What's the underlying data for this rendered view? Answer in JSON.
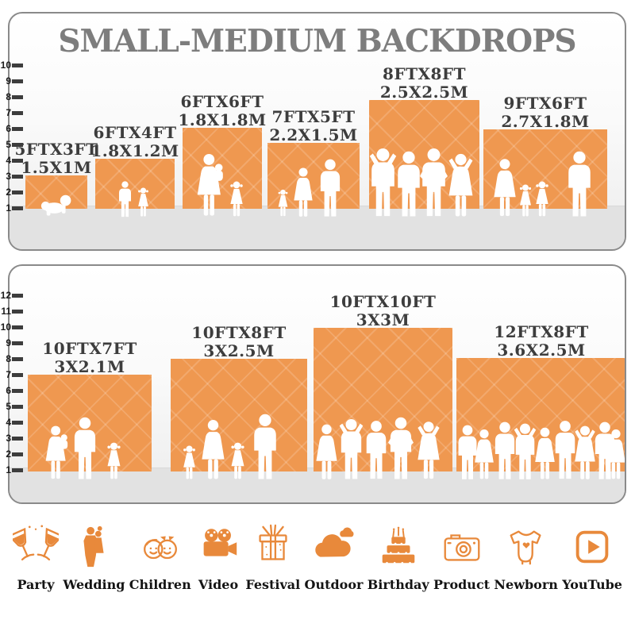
{
  "title": "SMALL-MEDIUM BACKDROPS",
  "panels": [
    {
      "name": "small-medium sizes (feet ruler 1-10)",
      "ruler": [
        "10",
        "9",
        "8",
        "7",
        "6",
        "5",
        "4",
        "3",
        "2",
        "1"
      ],
      "blocks": [
        {
          "size_ft": "5FTX3FT",
          "size_m": "1.5X1M"
        },
        {
          "size_ft": "6FTX4FT",
          "size_m": "1.8X1.2M"
        },
        {
          "size_ft": "6FTX6FT",
          "size_m": "1.8X1.8M"
        },
        {
          "size_ft": "7FTX5FT",
          "size_m": "2.2X1.5M"
        },
        {
          "size_ft": "8FTX8FT",
          "size_m": "2.5X2.5M"
        },
        {
          "size_ft": "9FTX6FT",
          "size_m": "2.7X1.8M"
        }
      ]
    },
    {
      "name": "medium-large sizes (feet ruler 1-12)",
      "ruler": [
        "12",
        "11",
        "10",
        "9",
        "8",
        "7",
        "6",
        "5",
        "4",
        "3",
        "2",
        "1"
      ],
      "blocks": [
        {
          "size_ft": "10FTX7FT",
          "size_m": "3X2.1M"
        },
        {
          "size_ft": "10FTX8FT",
          "size_m": "3X2.5M"
        },
        {
          "size_ft": "10FTX10FT",
          "size_m": "3X3M"
        },
        {
          "size_ft": "12FTX8FT",
          "size_m": "3.6X2.5M"
        }
      ]
    }
  ],
  "categories": [
    {
      "label": "Party",
      "icon": "party-icon"
    },
    {
      "label": "Wedding",
      "icon": "wedding-icon"
    },
    {
      "label": "Children",
      "icon": "children-icon"
    },
    {
      "label": "Video",
      "icon": "video-icon"
    },
    {
      "label": "Festival",
      "icon": "festival-icon"
    },
    {
      "label": "Outdoor",
      "icon": "outdoor-icon"
    },
    {
      "label": "Birthday",
      "icon": "birthday-icon"
    },
    {
      "label": "Product",
      "icon": "product-icon"
    },
    {
      "label": "Newborn",
      "icon": "newborn-icon"
    },
    {
      "label": "YouTube",
      "icon": "youtube-icon"
    }
  ],
  "colors": {
    "block_orange": "#EF9850",
    "icon_orange": "#E8893B",
    "title_gray": "#7D7D7D",
    "label_gray": "#3D3D3D",
    "panel_border": "#8A8A8A",
    "ground_gray": "#E2E2E2"
  }
}
